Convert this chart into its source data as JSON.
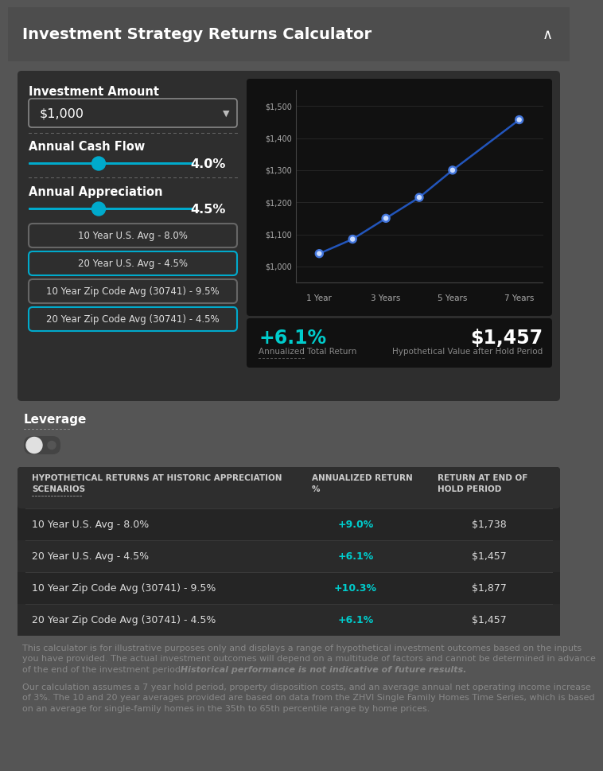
{
  "title": "Investment Strategy Returns Calculator",
  "title_color": "#ffffff",
  "title_fontsize": 14,
  "bg_color": "#555555",
  "panel_bg": "#2e2e2e",
  "dark_bg": "#111111",
  "investment_amount": "$1,000",
  "annual_cash_flow_label": "Annual Cash Flow",
  "annual_cash_flow_value": "4.0%",
  "annual_appreciation_label": "Annual Appreciation",
  "annual_appreciation_value": "4.5%",
  "preset_buttons": [
    {
      "label": "10 Year U.S. Avg - 8.0%",
      "selected": false
    },
    {
      "label": "20 Year U.S. Avg - 4.5%",
      "selected": true
    },
    {
      "label": "10 Year Zip Code Avg (30741) - 9.5%",
      "selected": false
    },
    {
      "label": "20 Year Zip Code Avg (30741) - 4.5%",
      "selected": true
    }
  ],
  "btn_edge_colors": [
    "#666666",
    "#00aacc",
    "#666666",
    "#00aacc"
  ],
  "chart_x_labels": [
    "1 Year",
    "3 Years",
    "5 Years",
    "7 Years"
  ],
  "chart_x_data": [
    1,
    2,
    3,
    4,
    5,
    7
  ],
  "chart_y_values": [
    1040,
    1085,
    1150,
    1215,
    1300,
    1457
  ],
  "chart_line_color": "#2255bb",
  "chart_dot_color": "#4477dd",
  "chart_y_ticks": [
    1000,
    1100,
    1200,
    1300,
    1400,
    1500
  ],
  "chart_y_labels": [
    "$1,000",
    "$1,100",
    "$1,200",
    "$1,300",
    "$1,400",
    "$1,500"
  ],
  "annualized_return": "+6.1%",
  "annualized_return_label": "Annualized Total Return",
  "hypothetical_value": "$1,457",
  "hypothetical_value_label": "Hypothetical Value after Hold Period",
  "cyan_color": "#00cccc",
  "leverage_label": "Leverage",
  "table_header_scenario": "HYPOTHETICAL RETURNS AT HISTORIC APPRECIATION\nSCENARIOS",
  "table_header_return": "ANNUALIZED RETURN\n%",
  "table_header_end": "RETURN AT END OF\nHOLD PERIOD",
  "table_rows": [
    {
      "scenario": "10 Year U.S. Avg - 8.0%",
      "return": "+9.0%",
      "end_value": "$1,738"
    },
    {
      "scenario": "20 Year U.S. Avg - 4.5%",
      "return": "+6.1%",
      "end_value": "$1,457"
    },
    {
      "scenario": "10 Year Zip Code Avg (30741) - 9.5%",
      "return": "+10.3%",
      "end_value": "$1,877"
    },
    {
      "scenario": "20 Year Zip Code Avg (30741) - 4.5%",
      "return": "+6.1%",
      "end_value": "$1,457"
    }
  ],
  "disc1_line1": "This calculator is for illustrative purposes only and displays a range of hypothetical investment outcomes based on the inputs",
  "disc1_line2": "you have provided. The actual investment outcomes will depend on a multitude of factors and cannot be determined in advance",
  "disc1_line3": "of the end of the investment period.",
  "disc1_bold": " Historical performance is not indicative of future results.",
  "disc2_line1": "Our calculation assumes a 7 year hold period, property disposition costs, and an average annual net operating income increase",
  "disc2_line2": "of 3%. The 10 and 20 year averages provided are based on data from the ZHVI Single Family Homes Time Series, which is based",
  "disc2_line3": "on an average for single-family homes in the 35th to 65th percentile range by home prices."
}
